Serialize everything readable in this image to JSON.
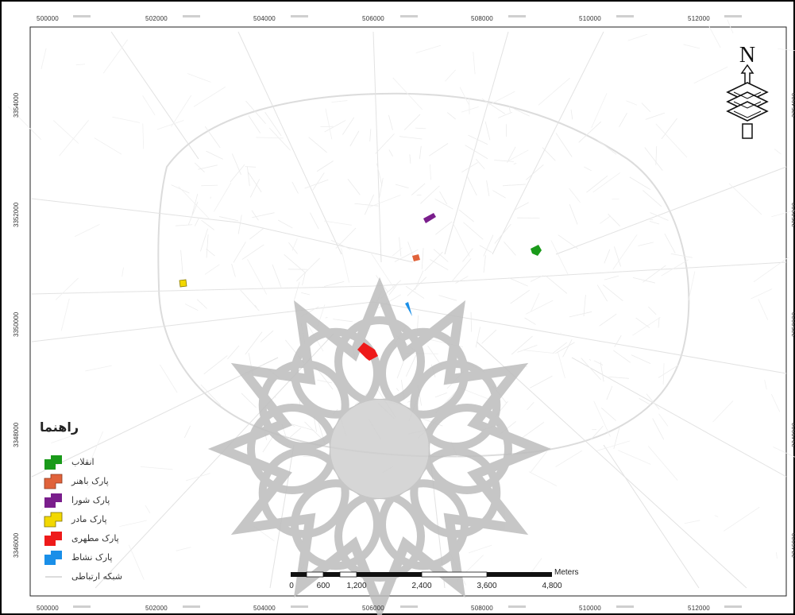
{
  "map": {
    "x_ticks": [
      "500000",
      "502000",
      "504000",
      "506000",
      "508000",
      "510000",
      "512000"
    ],
    "y_ticks": [
      "3354000",
      "3352000",
      "3350000",
      "3348000",
      "3346000"
    ],
    "north_label": "N"
  },
  "legend": {
    "title": "راهنما",
    "items": [
      {
        "label": "انقلاب",
        "color": "#1a9a1a"
      },
      {
        "label": "پارک باهنر",
        "color": "#e0623a"
      },
      {
        "label": "پارک شورا",
        "color": "#7a1e8c"
      },
      {
        "label": "پارک مادر",
        "color": "#f2d800"
      },
      {
        "label": "پارک مطهری",
        "color": "#ee1a1a"
      },
      {
        "label": "پارک نشاط",
        "color": "#1a8fe8"
      },
      {
        "label": "شبکه ارتباطی",
        "color": "#cccccc"
      }
    ]
  },
  "scalebar": {
    "units": "Meters",
    "labels": [
      "0",
      "600",
      "1,200",
      "2,400",
      "3,600",
      "4,800"
    ]
  },
  "features": [
    {
      "name": "انقلاب",
      "color": "#1a9a1a"
    },
    {
      "name": "پارک باهنر",
      "color": "#e0623a"
    },
    {
      "name": "پارک شورا",
      "color": "#7a1e8c"
    },
    {
      "name": "پارک مادر",
      "color": "#f2d800"
    },
    {
      "name": "پارک مطهری",
      "color": "#ee1a1a"
    },
    {
      "name": "پارک نشاط",
      "color": "#1a8fe8"
    }
  ]
}
